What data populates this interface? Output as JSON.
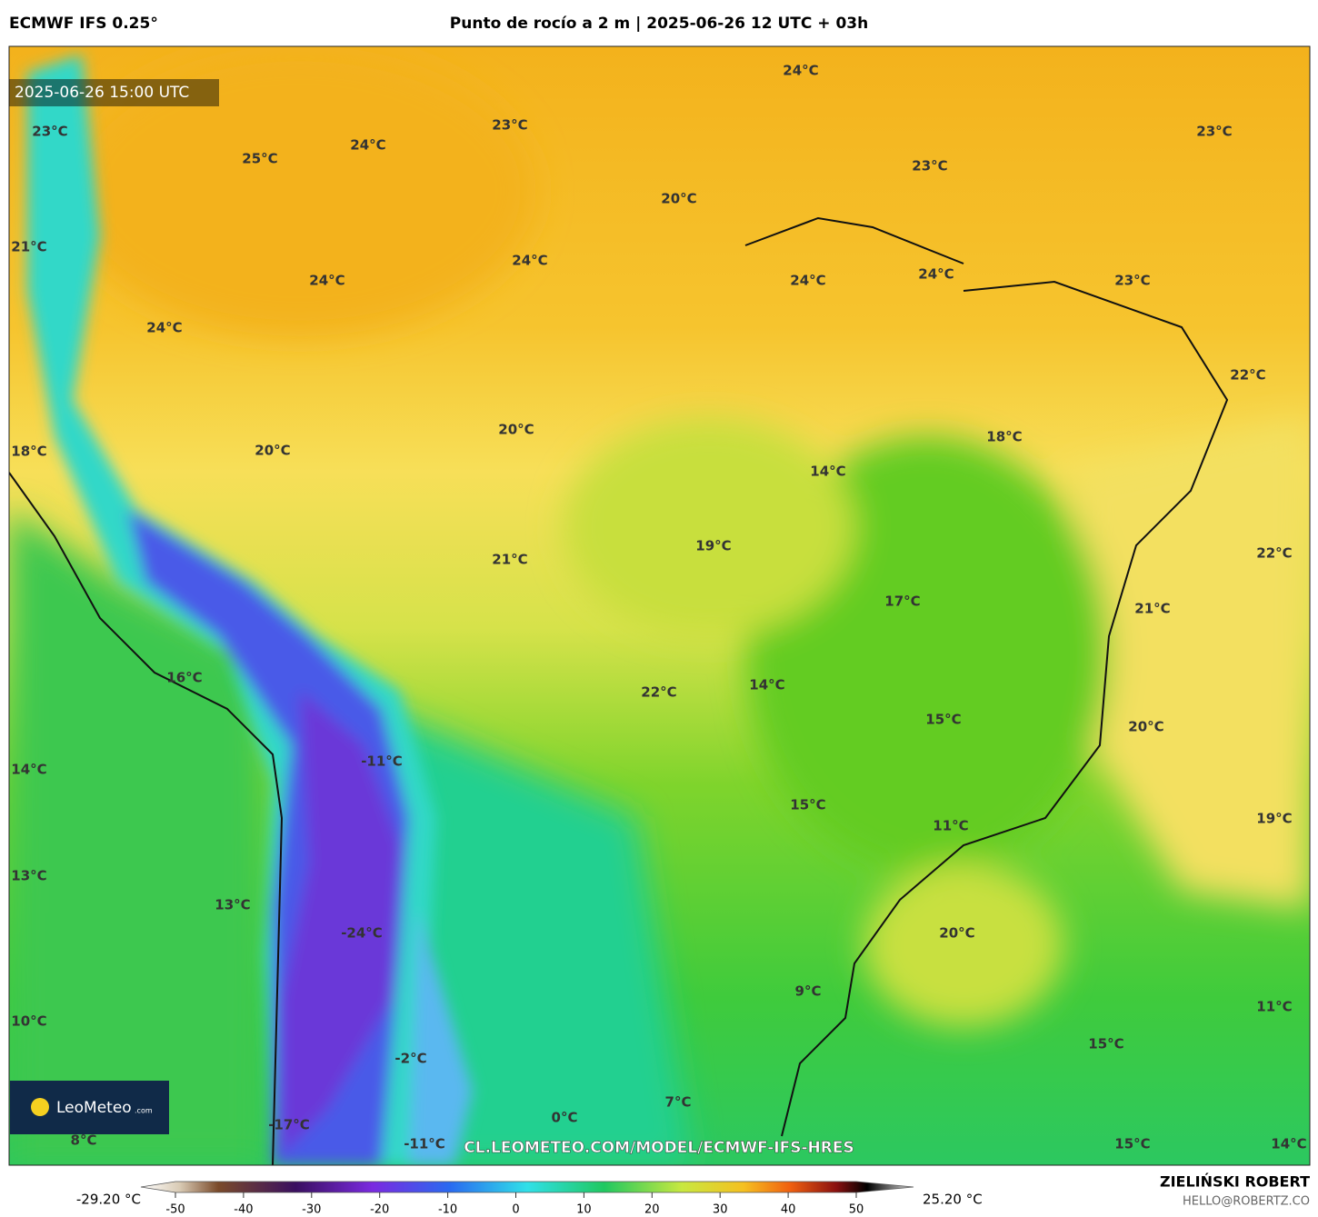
{
  "header": {
    "model": "ECMWF IFS 0.25°",
    "title": "Punto de rocío a 2 m | 2025-06-26 12 UTC + 03h"
  },
  "map": {
    "timestamp": "2025-06-26 15:00 UTC",
    "watermark": "CL.LEOMETEO.COM/MODEL/ECMWF-IFS-HRES",
    "logo": "LeoMeteo",
    "logo_suffix": ".com",
    "labels": [
      "24°C",
      "23°C",
      "23°C",
      "24°C",
      "25°C",
      "23°C",
      "23°C",
      "20°C",
      "21°C",
      "24°C",
      "24°C",
      "24°C",
      "24°C",
      "23°C",
      "24°C",
      "22°C",
      "20°C",
      "18°C",
      "18°C",
      "20°C",
      "14°C",
      "19°C",
      "21°C",
      "22°C",
      "17°C",
      "21°C",
      "16°C",
      "14°C",
      "22°C",
      "15°C",
      "20°C",
      "-11°C",
      "14°C",
      "15°C",
      "11°C",
      "19°C",
      "13°C",
      "13°C",
      "-24°C",
      "20°C",
      "9°C",
      "10°C",
      "11°C",
      "15°C",
      "-2°C",
      "7°C",
      "0°C",
      "-17°C",
      "8°C",
      "-11°C",
      "15°C",
      "14°C"
    ]
  },
  "colorbar": {
    "min_label": "-29.20 °C",
    "max_label": "25.20 °C",
    "ticks": [
      -50,
      -40,
      -30,
      -20,
      -10,
      0,
      10,
      20,
      30,
      40,
      50
    ]
  },
  "footer": {
    "author": "ZIELIŃSKI ROBERT",
    "contact": "HELLO@ROBERTZ.CO"
  }
}
